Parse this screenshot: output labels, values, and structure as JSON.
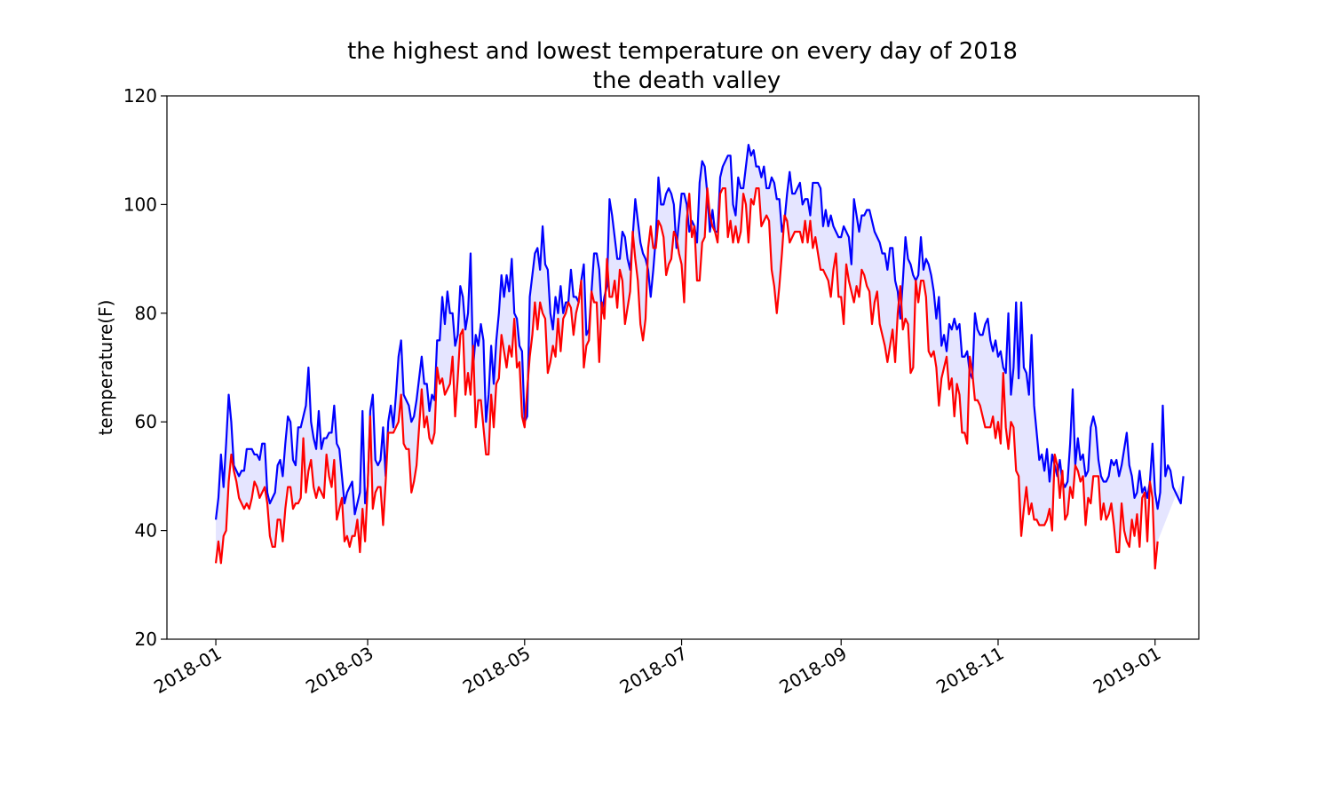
{
  "chart_data": {
    "type": "line",
    "title": [
      "the highest and lowest temperature on every day of 2018",
      "the death valley"
    ],
    "xlabel": "",
    "ylabel": "temperature(F)",
    "x_start": "2018-01-01",
    "xlim": [
      "2017-12-13",
      "2019-01-18"
    ],
    "ylim": [
      20,
      120
    ],
    "yticks": [
      20,
      40,
      60,
      80,
      100,
      120
    ],
    "xticks": [
      {
        "date": "2018-01-01",
        "label": "2018-01"
      },
      {
        "date": "2018-03-01",
        "label": "2018-03"
      },
      {
        "date": "2018-05-01",
        "label": "2018-05"
      },
      {
        "date": "2018-07-01",
        "label": "2018-07"
      },
      {
        "date": "2018-09-01",
        "label": "2018-09"
      },
      {
        "date": "2018-11-01",
        "label": "2018-11"
      },
      {
        "date": "2019-01-01",
        "label": "2019-01"
      }
    ],
    "grid": false,
    "fill_between": {
      "color": "#0000ff",
      "alpha": 0.1
    },
    "series": [
      {
        "color": "#0000ff",
        "values": [
          42,
          46,
          54,
          48,
          56,
          65,
          60,
          52,
          51,
          50,
          51,
          51,
          55,
          55,
          55,
          54,
          54,
          53,
          56,
          56,
          47,
          45,
          46,
          47,
          52,
          53,
          50,
          56,
          61,
          60,
          53,
          52,
          59,
          59,
          61,
          63,
          70,
          60,
          57,
          55,
          62,
          55,
          57,
          57,
          58,
          58,
          63,
          56,
          55,
          50,
          45,
          47,
          48,
          49,
          43,
          45,
          47,
          62,
          45,
          48,
          62,
          65,
          53,
          52,
          53,
          59,
          50,
          60,
          63,
          59,
          65,
          72,
          75,
          65,
          64,
          63,
          60,
          61,
          64,
          68,
          72,
          67,
          67,
          62,
          65,
          64,
          75,
          75,
          83,
          78,
          84,
          80,
          80,
          74,
          76,
          85,
          83,
          77,
          80,
          91,
          70,
          76,
          74,
          78,
          75,
          60,
          65,
          74,
          67,
          75,
          80,
          87,
          83,
          87,
          84,
          90,
          80,
          79,
          74,
          73,
          60,
          61,
          83,
          87,
          91,
          92,
          88,
          96,
          89,
          88,
          80,
          77,
          83,
          80,
          85,
          80,
          82,
          82,
          88,
          83,
          83,
          82,
          86,
          89,
          76,
          77,
          84,
          91,
          91,
          88,
          80,
          83,
          85,
          101,
          98,
          94,
          90,
          90,
          95,
          94,
          90,
          88,
          94,
          101,
          97,
          93,
          91,
          90,
          88,
          83,
          88,
          94,
          105,
          100,
          100,
          102,
          103,
          102,
          100,
          92,
          97,
          102,
          102,
          100,
          95,
          97,
          96,
          93,
          104,
          108,
          107,
          102,
          95,
          99,
          95,
          95,
          105,
          107,
          108,
          109,
          109,
          100,
          98,
          105,
          103,
          103,
          107,
          111,
          109,
          110,
          107,
          107,
          105,
          107,
          103,
          103,
          105,
          104,
          101,
          101,
          95,
          97,
          102,
          106,
          102,
          102,
          103,
          104,
          100,
          101,
          101,
          98,
          104,
          104,
          104,
          103,
          96,
          99,
          96,
          98,
          96,
          95,
          94,
          94,
          96,
          95,
          94,
          89,
          101,
          98,
          95,
          98,
          98,
          99,
          99,
          97,
          95,
          94,
          93,
          91,
          91,
          88,
          92,
          92,
          86,
          84,
          79,
          86,
          94,
          90,
          89,
          87,
          86,
          87,
          94,
          88,
          90,
          89,
          87,
          84,
          79,
          83,
          74,
          76,
          73,
          78,
          77,
          79,
          77,
          78,
          72,
          72,
          73,
          69,
          68,
          80,
          77,
          76,
          76,
          78,
          79,
          75,
          73,
          75,
          72,
          73,
          70,
          69,
          80,
          65,
          70,
          82,
          68,
          82,
          70,
          69,
          65,
          76,
          63,
          58,
          53,
          54,
          51,
          55,
          49,
          54,
          52,
          50,
          53,
          49,
          48,
          49,
          56,
          66,
          52,
          57,
          53,
          54,
          50,
          51,
          59,
          61,
          59,
          53,
          50,
          49,
          49,
          50,
          53,
          52,
          53,
          50,
          52,
          55,
          58,
          52,
          50,
          46,
          47,
          51,
          47,
          48,
          46,
          49,
          56,
          47,
          44,
          47,
          63,
          50,
          52,
          51,
          48,
          47,
          46,
          45,
          50
        ]
      },
      {
        "color": "#ff0000",
        "values": [
          34,
          38,
          34,
          39,
          40,
          49,
          54,
          51,
          49,
          46,
          45,
          44,
          45,
          44,
          46,
          49,
          48,
          46,
          47,
          48,
          45,
          39,
          37,
          37,
          42,
          42,
          38,
          44,
          48,
          48,
          44,
          45,
          45,
          46,
          57,
          47,
          51,
          53,
          48,
          46,
          48,
          47,
          46,
          54,
          50,
          48,
          53,
          42,
          44,
          46,
          38,
          39,
          37,
          39,
          39,
          42,
          36,
          44,
          38,
          48,
          61,
          44,
          47,
          48,
          48,
          41,
          49,
          58,
          58,
          58,
          59,
          60,
          65,
          56,
          55,
          55,
          47,
          49,
          52,
          59,
          66,
          59,
          61,
          57,
          56,
          58,
          70,
          67,
          68,
          65,
          66,
          67,
          72,
          61,
          68,
          76,
          77,
          65,
          69,
          65,
          74,
          59,
          64,
          64,
          59,
          54,
          54,
          65,
          59,
          67,
          68,
          76,
          73,
          70,
          74,
          72,
          79,
          70,
          71,
          61,
          59,
          66,
          72,
          76,
          82,
          77,
          82,
          80,
          79,
          69,
          71,
          74,
          72,
          79,
          73,
          79,
          80,
          82,
          81,
          76,
          80,
          82,
          86,
          70,
          74,
          75,
          84,
          82,
          82,
          71,
          82,
          79,
          90,
          83,
          83,
          86,
          81,
          88,
          86,
          78,
          81,
          84,
          95,
          90,
          86,
          78,
          75,
          79,
          92,
          96,
          92,
          92,
          97,
          96,
          94,
          87,
          89,
          90,
          95,
          94,
          91,
          89,
          82,
          97,
          102,
          94,
          96,
          86,
          86,
          93,
          94,
          103,
          98,
          96,
          95,
          93,
          102,
          103,
          103,
          94,
          97,
          93,
          96,
          93,
          95,
          102,
          100,
          93,
          101,
          100,
          103,
          103,
          96,
          97,
          98,
          97,
          88,
          85,
          80,
          85,
          91,
          98,
          97,
          93,
          94,
          95,
          95,
          95,
          93,
          97,
          93,
          97,
          92,
          94,
          91,
          88,
          88,
          87,
          86,
          83,
          88,
          91,
          83,
          83,
          78,
          89,
          86,
          84,
          82,
          85,
          83,
          88,
          87,
          85,
          84,
          78,
          82,
          84,
          78,
          76,
          74,
          71,
          74,
          77,
          71,
          80,
          85,
          77,
          79,
          78,
          69,
          70,
          86,
          82,
          86,
          86,
          83,
          73,
          72,
          73,
          70,
          63,
          68,
          70,
          72,
          66,
          68,
          61,
          67,
          65,
          58,
          58,
          56,
          72,
          69,
          64,
          64,
          63,
          61,
          59,
          59,
          59,
          61,
          57,
          60,
          56,
          69,
          59,
          55,
          60,
          59,
          51,
          50,
          39,
          44,
          48,
          43,
          45,
          42,
          42,
          41,
          41,
          41,
          42,
          44,
          40,
          54,
          52,
          46,
          51,
          42,
          43,
          48,
          46,
          52,
          51,
          49,
          50,
          41,
          46,
          45,
          50,
          50,
          50,
          42,
          45,
          42,
          43,
          45,
          41,
          36,
          36,
          45,
          40,
          38,
          37,
          42,
          39,
          43,
          37,
          46,
          47,
          38,
          49,
          46,
          33,
          38
        ]
      }
    ]
  }
}
